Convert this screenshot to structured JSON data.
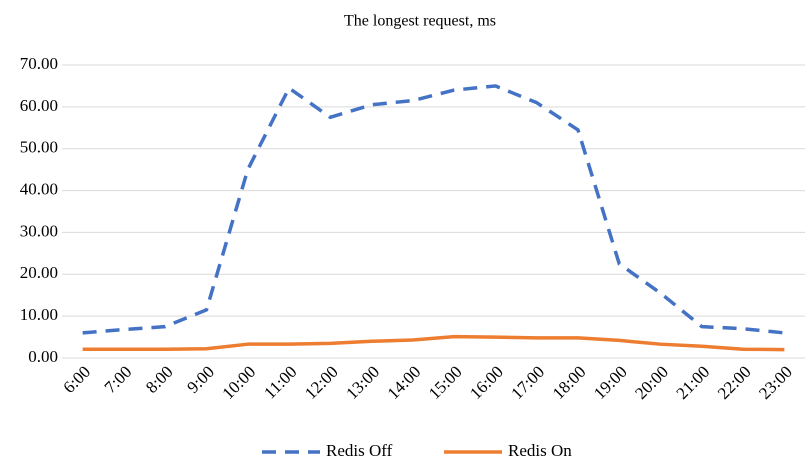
{
  "chart_data": {
    "type": "line",
    "title": "The longest request, ms",
    "categories": [
      "6:00",
      "7:00",
      "8:00",
      "9:00",
      "10:00",
      "11:00",
      "12:00",
      "13:00",
      "14:00",
      "15:00",
      "16:00",
      "17:00",
      "18:00",
      "19:00",
      "20:00",
      "21:00",
      "22:00",
      "23:00"
    ],
    "series": [
      {
        "name": "Redis Off",
        "color": "#4472c4",
        "dash": true,
        "values": [
          6.0,
          6.8,
          7.5,
          11.5,
          45.0,
          64.5,
          57.5,
          60.5,
          61.5,
          64.0,
          65.0,
          61.0,
          54.5,
          22.5,
          15.5,
          7.5,
          7.0,
          6.0
        ]
      },
      {
        "name": "Redis On",
        "color": "#ed7d31",
        "dash": false,
        "values": [
          2.1,
          2.1,
          2.1,
          2.2,
          3.3,
          3.3,
          3.5,
          4.0,
          4.3,
          5.1,
          5.0,
          4.8,
          4.8,
          4.2,
          3.3,
          2.8,
          2.1,
          2.0
        ]
      }
    ],
    "ylim": [
      0,
      70
    ],
    "yticks": [
      {
        "value": 0,
        "label": "0.00"
      },
      {
        "value": 10,
        "label": "10.00"
      },
      {
        "value": 20,
        "label": "20.00"
      },
      {
        "value": 30,
        "label": "30.00"
      },
      {
        "value": 40,
        "label": "40.00"
      },
      {
        "value": 50,
        "label": "50.00"
      },
      {
        "value": 60,
        "label": "60.00"
      },
      {
        "value": 70,
        "label": "70.00"
      }
    ],
    "grid": true,
    "legend": "bottom"
  }
}
